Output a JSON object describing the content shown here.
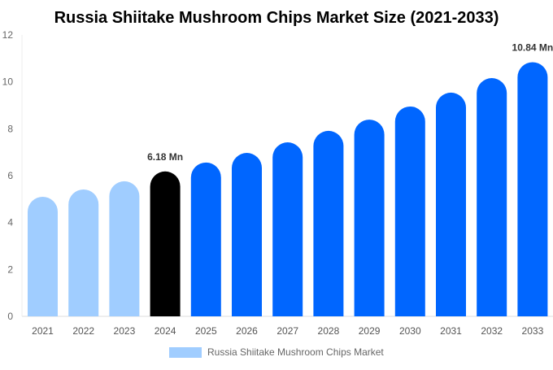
{
  "chart_data": {
    "type": "bar",
    "title": "Russia Shiitake Mushroom Chips Market Size (2021-2033)",
    "categories": [
      "2021",
      "2022",
      "2023",
      "2024",
      "2025",
      "2026",
      "2027",
      "2028",
      "2029",
      "2030",
      "2031",
      "2032",
      "2033"
    ],
    "series": [
      {
        "name": "Russia Shiitake Mushroom Chips Market",
        "values": [
          5.1,
          5.41,
          5.76,
          6.18,
          6.56,
          6.97,
          7.42,
          7.91,
          8.39,
          8.95,
          9.54,
          10.16,
          10.84
        ]
      }
    ],
    "data_labels": {
      "3": "6.18 Mn",
      "12": "10.84 Mn"
    },
    "ylim": [
      0,
      12
    ],
    "yticks": [
      0,
      2,
      4,
      6,
      8,
      10,
      12
    ],
    "xlabel": "",
    "ylabel": "",
    "grid": false,
    "legend": "bottom",
    "colors": {
      "historic": "#a0cdff",
      "base_year": "#000000",
      "forecast": "#0066ff",
      "legend": "#a0cdff"
    }
  }
}
